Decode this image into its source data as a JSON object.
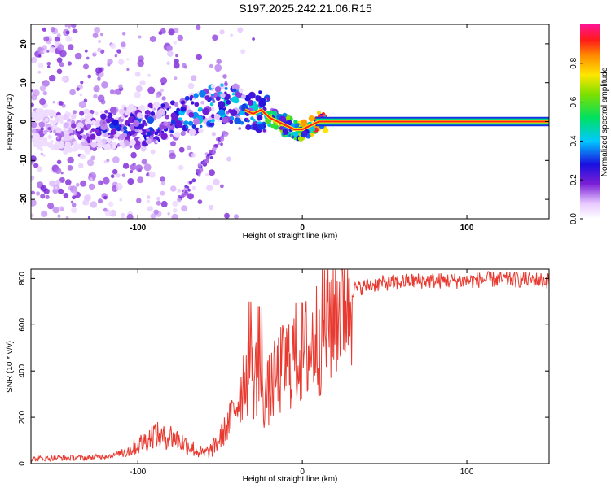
{
  "title": "S197.2025.242.21.06.R15",
  "colors": {
    "snr_line": "#e83a30",
    "ridge": "#ff2020",
    "axis": "#000000"
  },
  "chart_data": [
    {
      "type": "heatmap",
      "name": "spectrogram",
      "xlabel": "Height of straight line (km)",
      "ylabel": "Frequency (Hz)",
      "xlim": [
        -165,
        150
      ],
      "ylim": [
        -25,
        25
      ],
      "xticks": [
        -100,
        0,
        100
      ],
      "yticks": [
        -20,
        -10,
        0,
        10,
        20
      ],
      "colorbar": {
        "label": "Normalized spectral amplitude",
        "range": [
          0,
          1
        ],
        "ticks": [
          0.0,
          0.2,
          0.4,
          0.6,
          0.8
        ],
        "tick_labels": [
          "0.0",
          "0.2",
          "0.4",
          "0.6",
          "0.8"
        ]
      },
      "ridge": {
        "x": [
          -165,
          -140,
          -120,
          -100,
          -80,
          -70,
          -60,
          -50,
          -40,
          -30,
          -25,
          -20,
          -15,
          -10,
          -5,
          0,
          5,
          10,
          20,
          50,
          100,
          150
        ],
        "frequency": [
          -2,
          -3,
          -2,
          -1,
          0,
          1,
          3,
          5,
          4,
          2,
          3,
          1,
          0,
          -1,
          -2,
          -2,
          -1,
          0,
          0,
          0,
          0,
          0
        ],
        "amplitude": [
          0.15,
          0.2,
          0.3,
          0.35,
          0.4,
          0.45,
          0.5,
          0.5,
          0.45,
          0.5,
          0.55,
          0.6,
          0.65,
          0.7,
          0.75,
          0.8,
          0.85,
          0.95,
          1.0,
          1.0,
          1.0,
          1.0
        ]
      }
    },
    {
      "type": "line",
      "name": "snr",
      "xlabel": "Height of straight line (km)",
      "ylabel": "SNR (10 * v/v)",
      "xlim": [
        -165,
        150
      ],
      "ylim": [
        0,
        840
      ],
      "xticks": [
        -100,
        0,
        100
      ],
      "yticks": [
        0,
        200,
        400,
        600,
        800
      ],
      "series": [
        {
          "name": "SNR",
          "x": [
            -165,
            -150,
            -130,
            -115,
            -105,
            -95,
            -90,
            -85,
            -80,
            -75,
            -70,
            -65,
            -60,
            -55,
            -50,
            -45,
            -40,
            -35,
            -32,
            -30,
            -28,
            -25,
            -22,
            -20,
            -15,
            -10,
            -5,
            0,
            5,
            10,
            15,
            20,
            25,
            30,
            35,
            40,
            50,
            60,
            70,
            80,
            90,
            100,
            110,
            120,
            130,
            140,
            150
          ],
          "y": [
            20,
            25,
            25,
            35,
            60,
            100,
            130,
            110,
            120,
            100,
            80,
            60,
            40,
            60,
            110,
            170,
            260,
            380,
            420,
            350,
            400,
            300,
            280,
            320,
            380,
            430,
            470,
            480,
            500,
            560,
            620,
            680,
            730,
            750,
            760,
            770,
            780,
            785,
            790,
            790,
            790,
            790,
            795,
            795,
            795,
            795,
            790
          ]
        }
      ]
    }
  ]
}
